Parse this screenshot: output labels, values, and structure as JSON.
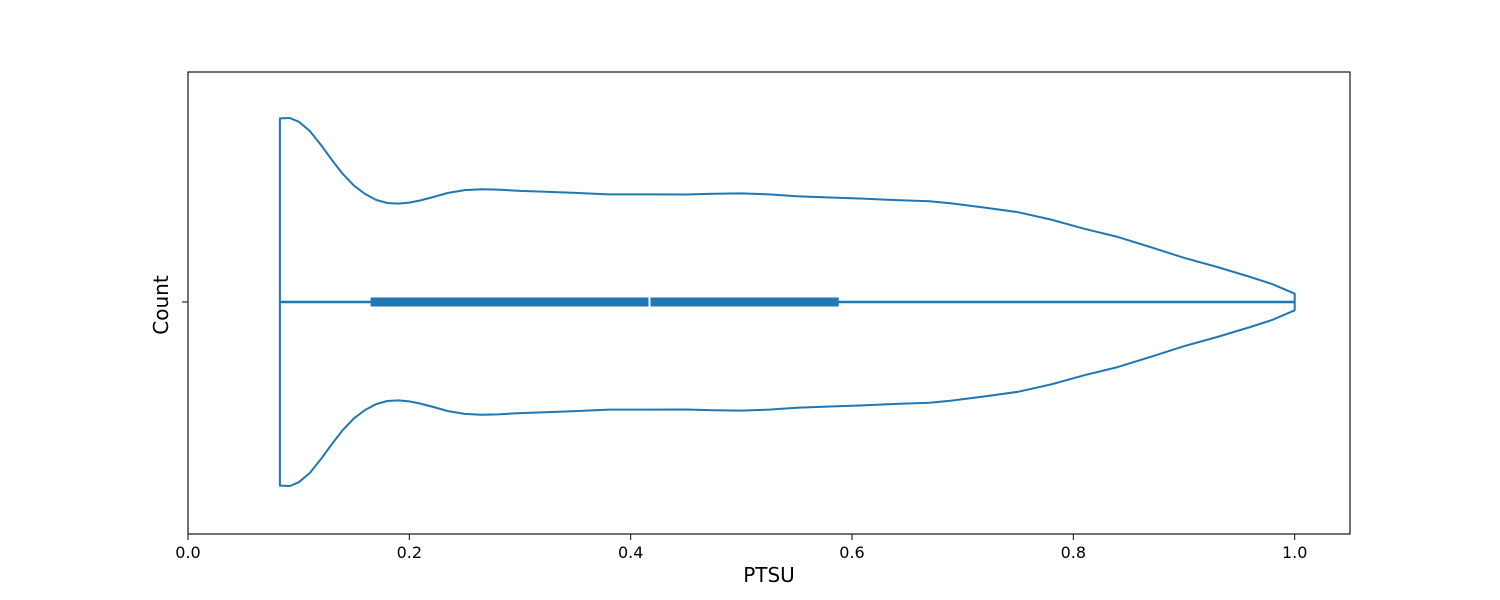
{
  "chart_data": {
    "type": "violin",
    "orientation": "horizontal",
    "xlabel": "PTSU",
    "ylabel": "Count",
    "xlim": [
      0.0,
      1.05
    ],
    "x_ticks": [
      0.0,
      0.2,
      0.4,
      0.6,
      0.8,
      1.0
    ],
    "x_tick_labels": [
      "0.0",
      "0.2",
      "0.4",
      "0.6",
      "0.8",
      "1.0"
    ],
    "grid": false,
    "color": "#1f77b4",
    "median_color": "#ffffff",
    "violin": {
      "min": 0.083,
      "max": 1.0,
      "q1": 0.165,
      "median": 0.417,
      "q3": 0.588,
      "density_max": 1.0,
      "density": [
        [
          0.083,
          0.998
        ],
        [
          0.092,
          1.0
        ],
        [
          0.1,
          0.98
        ],
        [
          0.11,
          0.93
        ],
        [
          0.12,
          0.855
        ],
        [
          0.13,
          0.772
        ],
        [
          0.14,
          0.695
        ],
        [
          0.15,
          0.632
        ],
        [
          0.16,
          0.587
        ],
        [
          0.17,
          0.555
        ],
        [
          0.18,
          0.538
        ],
        [
          0.19,
          0.535
        ],
        [
          0.2,
          0.54
        ],
        [
          0.21,
          0.552
        ],
        [
          0.22,
          0.568
        ],
        [
          0.235,
          0.593
        ],
        [
          0.25,
          0.608
        ],
        [
          0.265,
          0.613
        ],
        [
          0.28,
          0.611
        ],
        [
          0.3,
          0.604
        ],
        [
          0.32,
          0.6
        ],
        [
          0.35,
          0.593
        ],
        [
          0.38,
          0.585
        ],
        [
          0.42,
          0.585
        ],
        [
          0.45,
          0.584
        ],
        [
          0.475,
          0.588
        ],
        [
          0.5,
          0.59
        ],
        [
          0.525,
          0.585
        ],
        [
          0.55,
          0.575
        ],
        [
          0.58,
          0.568
        ],
        [
          0.61,
          0.562
        ],
        [
          0.64,
          0.554
        ],
        [
          0.67,
          0.548
        ],
        [
          0.69,
          0.536
        ],
        [
          0.72,
          0.513
        ],
        [
          0.75,
          0.488
        ],
        [
          0.78,
          0.448
        ],
        [
          0.81,
          0.398
        ],
        [
          0.84,
          0.354
        ],
        [
          0.87,
          0.298
        ],
        [
          0.9,
          0.24
        ],
        [
          0.93,
          0.19
        ],
        [
          0.96,
          0.136
        ],
        [
          0.98,
          0.097
        ],
        [
          1.0,
          0.045
        ]
      ]
    }
  }
}
